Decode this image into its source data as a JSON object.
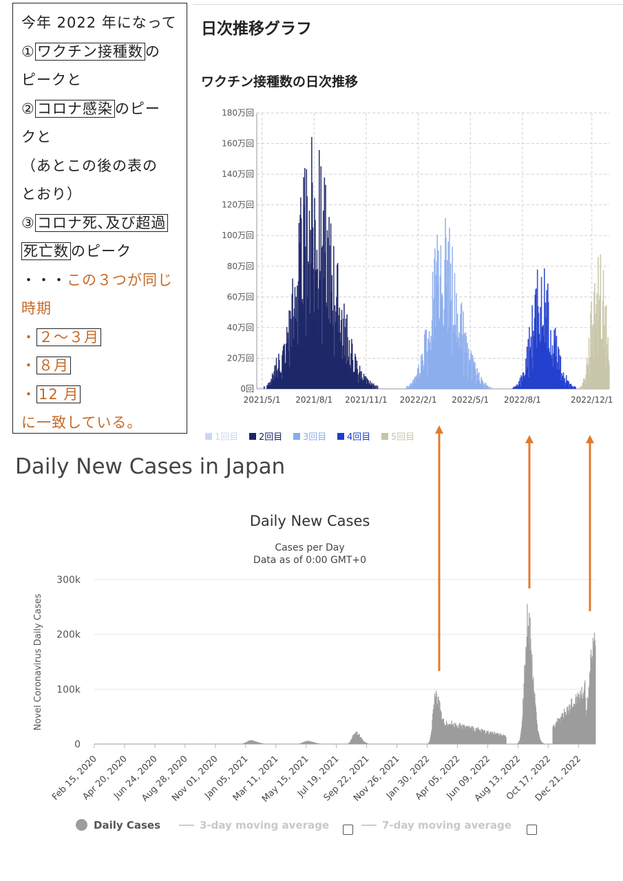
{
  "note": {
    "line1": "今年 2022 年になって",
    "item1_num": "①",
    "item1_boxed": "ワクチン接種数",
    "item1_after": "の",
    "item1_cont": "ピークと",
    "item2_num": "②",
    "item2_boxed": "コロナ感染",
    "item2_after": "のピー",
    "item2_cont": "クと",
    "paren1": "（あとこの後の表の",
    "paren2": "とおり）",
    "item3_num": "③",
    "item3_boxed": "コロナ死､及び超過",
    "item3_boxed2": "死亡数",
    "item3_after": "のピーク",
    "dots": "・・・",
    "same_time1": "この３つが同じ",
    "same_time2": "時期",
    "bullet": "・",
    "period1": "２～３月",
    "period2": "８月",
    "period3": "12 月",
    "conclusion": "に一致している。"
  },
  "colors": {
    "dose1": "#c9d8f5",
    "dose2": "#1b2466",
    "dose3": "#8aacec",
    "dose4": "#1f3ccc",
    "dose5": "#c8c4a8",
    "cases": "#9c9c9c",
    "arrow": "#e07b2e",
    "orange_text": "#c46a26"
  },
  "vaccine": {
    "heading": "日次推移グラフ",
    "title": "ワクチン接種数の日次推移",
    "chart_data": {
      "type": "bar",
      "title": "ワクチン接種数の日次推移",
      "y_ticks": [
        "0回",
        "20万回",
        "40万回",
        "60万回",
        "80万回",
        "100万回",
        "120万回",
        "140万回",
        "160万回",
        "180万回"
      ],
      "ylim": [
        0,
        1800000
      ],
      "x_ticks": [
        "2021/5/1",
        "2021/8/1",
        "2021/11/1",
        "2022/2/1",
        "2022/5/1",
        "2022/8/1",
        "2022/12/1"
      ],
      "x_tick_months": [
        0,
        3,
        6,
        9,
        12,
        15,
        19
      ],
      "xlim_months": [
        -0.3,
        20.0
      ],
      "grid": true,
      "legend_position": "bottom",
      "series": [
        {
          "name": "1回目",
          "peak_month": 2.6,
          "peak": 700000,
          "spread": 1.6,
          "key": "dose1"
        },
        {
          "name": "2回目",
          "peak_month": 2.9,
          "peak": 1650000,
          "spread": 1.6,
          "key": "dose2"
        },
        {
          "name": "3回目",
          "peak_month": 10.4,
          "peak": 1170000,
          "spread": 1.2,
          "key": "dose3"
        },
        {
          "name": "4回目",
          "peak_month": 16.0,
          "peak": 850000,
          "spread": 0.9,
          "key": "dose4"
        },
        {
          "name": "5回目",
          "peak_month": 19.3,
          "peak": 1000000,
          "spread": 0.6,
          "key": "dose5"
        }
      ]
    }
  },
  "cases": {
    "heading": "Daily New Cases in Japan",
    "chart_data": {
      "type": "bar",
      "title": "Daily New Cases",
      "subtitle1": "Cases per Day",
      "subtitle2": "Data as of 0:00 GMT+0",
      "ylabel": "Novel Coronavirus Daily Cases",
      "y_ticks": [
        "0",
        "100k",
        "200k",
        "300k"
      ],
      "ylim": [
        0,
        300000
      ],
      "x_ticks": [
        "Feb 15, 2020",
        "Apr 20, 2020",
        "Jun 24, 2020",
        "Aug 28, 2020",
        "Nov 01, 2020",
        "Jan 05, 2021",
        "Mar 11, 2021",
        "May 15, 2021",
        "Jul 19, 2021",
        "Sep 22, 2021",
        "Nov 26, 2021",
        "Jan 30, 2022",
        "Apr 05, 2022",
        "Jun 09, 2022",
        "Aug 13, 2022",
        "Oct 17, 2022",
        "Dec 21, 2022"
      ],
      "grid": true,
      "series": [
        {
          "name": "Daily Cases",
          "peaks": [
            {
              "date": "2021-01-10",
              "cases": 7500
            },
            {
              "date": "2021-05-10",
              "cases": 6500
            },
            {
              "date": "2021-08-20",
              "cases": 25000
            },
            {
              "date": "2022-02-05",
              "cases": 105000
            },
            {
              "date": "2022-08-19",
              "cases": 260000
            },
            {
              "date": "2023-01-06",
              "cases": 215000
            }
          ]
        }
      ],
      "legend": {
        "daily": "Daily Cases",
        "avg3": "3-day moving average",
        "avg7": "7-day moving average"
      }
    }
  }
}
